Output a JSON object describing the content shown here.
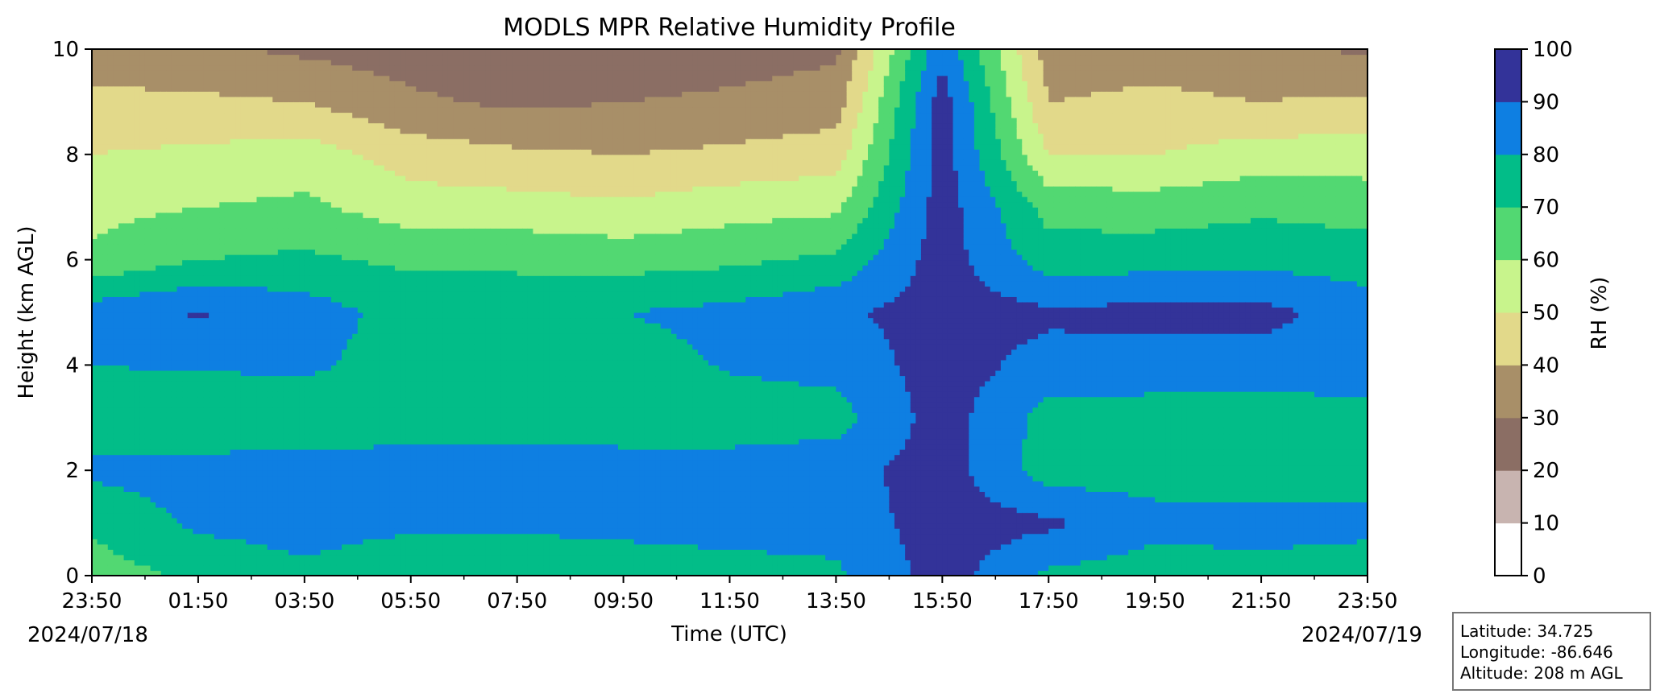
{
  "chart_data": {
    "type": "heatmap",
    "title": "MODLS MPR Relative Humidity Profile",
    "xlabel": "Time (UTC)",
    "ylabel": "Height (km AGL)",
    "x_ticks": [
      "23:50",
      "01:50",
      "03:50",
      "05:50",
      "07:50",
      "09:50",
      "11:50",
      "13:50",
      "15:50",
      "17:50",
      "19:50",
      "21:50",
      "23:50"
    ],
    "y_ticks": [
      "0",
      "2",
      "4",
      "6",
      "8",
      "10"
    ],
    "ylim": [
      0,
      10
    ],
    "start_date_label": "2024/07/18",
    "end_date_label": "2024/07/19",
    "colorbar": {
      "label": "RH (%)",
      "levels": [
        0,
        10,
        20,
        30,
        40,
        50,
        60,
        70,
        80,
        90,
        100
      ],
      "level_labels": [
        "0",
        "10",
        "20",
        "30",
        "40",
        "50",
        "60",
        "70",
        "80",
        "90",
        "100"
      ],
      "colors": [
        "#ffffff",
        "#c8b4b0",
        "#8b6e64",
        "#a88f68",
        "#e2d98a",
        "#c8f48c",
        "#52d872",
        "#02bd88",
        "#0e7fe2",
        "#333399"
      ]
    },
    "rh_profile": {
      "times_utc": [
        "23:50",
        "01:50",
        "03:50",
        "05:50",
        "07:50",
        "09:50",
        "11:50",
        "13:50",
        "15:50",
        "17:50",
        "19:50",
        "21:50",
        "23:50"
      ],
      "heights_km": [
        0,
        1,
        2,
        3,
        4,
        5,
        6,
        7,
        8,
        9,
        10
      ],
      "rh_percent": [
        [
          65,
          72,
          82,
          74,
          80,
          85,
          62,
          57,
          50,
          44,
          30
        ],
        [
          72,
          82,
          84,
          72,
          81,
          91,
          70,
          60,
          52,
          42,
          32
        ],
        [
          78,
          84,
          85,
          72,
          82,
          85,
          72,
          62,
          55,
          40,
          28
        ],
        [
          72,
          82,
          85,
          75,
          75,
          76,
          68,
          55,
          45,
          32,
          25
        ],
        [
          72,
          82,
          86,
          75,
          74,
          76,
          68,
          54,
          42,
          28,
          22
        ],
        [
          74,
          83,
          84,
          75,
          75,
          80,
          66,
          52,
          40,
          30,
          22
        ],
        [
          76,
          84,
          84,
          75,
          81,
          83,
          68,
          56,
          42,
          32,
          25
        ],
        [
          78,
          84,
          86,
          76,
          83,
          88,
          72,
          58,
          45,
          35,
          28
        ],
        [
          95,
          95,
          95,
          95,
          95,
          95,
          95,
          95,
          95,
          95,
          88
        ],
        [
          78,
          92,
          75,
          76,
          86,
          92,
          75,
          66,
          50,
          40,
          35
        ],
        [
          74,
          84,
          75,
          75,
          86,
          93,
          76,
          65,
          50,
          42,
          36
        ],
        [
          76,
          84,
          75,
          75,
          86,
          93,
          77,
          68,
          55,
          40,
          34
        ],
        [
          74,
          83,
          75,
          76,
          85,
          85,
          75,
          66,
          55,
          42,
          28
        ]
      ]
    }
  },
  "info_box": {
    "latitude": "Latitude: 34.725",
    "longitude": "Longitude: -86.646",
    "altitude": "Altitude: 208 m AGL"
  }
}
